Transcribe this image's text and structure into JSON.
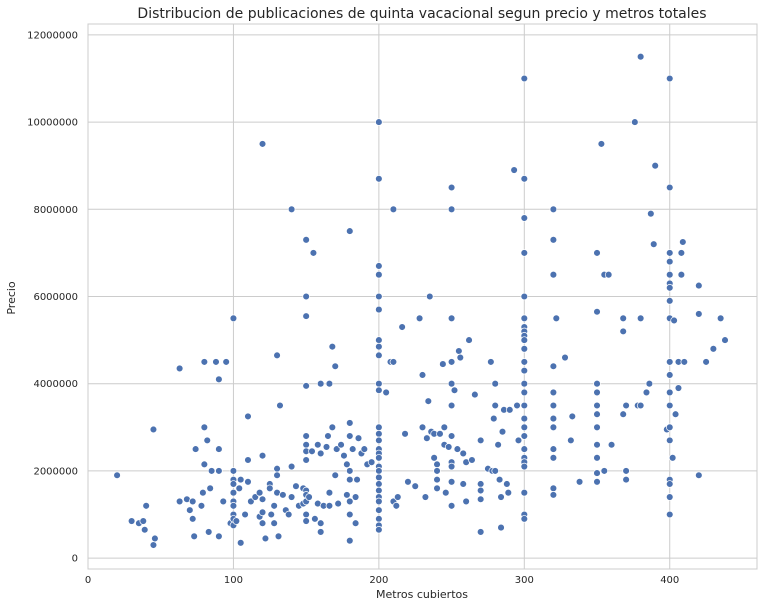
{
  "chart_data": {
    "type": "scatter",
    "title": "Distribucion de publicaciones de quinta vacacional segun precio y metros totales",
    "xlabel": "Metros cubiertos",
    "ylabel": "Precio",
    "xlim": [
      0,
      460
    ],
    "ylim": [
      -250000,
      12250000
    ],
    "xticks": [
      0,
      100,
      200,
      300,
      400
    ],
    "yticks": [
      0,
      2000000,
      4000000,
      6000000,
      8000000,
      10000000,
      12000000
    ],
    "xtick_labels": [
      "0",
      "100",
      "200",
      "300",
      "400"
    ],
    "ytick_labels": [
      "0",
      "2000000",
      "4000000",
      "6000000",
      "8000000",
      "10000000",
      "12000000"
    ],
    "grid": true,
    "point_color": "#4c72b0",
    "points": [
      [
        20,
        1900000
      ],
      [
        30,
        850000
      ],
      [
        35,
        800000
      ],
      [
        38,
        850000
      ],
      [
        39,
        650000
      ],
      [
        40,
        1200000
      ],
      [
        45,
        300000
      ],
      [
        46,
        450000
      ],
      [
        45,
        2950000
      ],
      [
        63,
        4350000
      ],
      [
        63,
        1300000
      ],
      [
        68,
        1350000
      ],
      [
        70,
        1100000
      ],
      [
        72,
        900000
      ],
      [
        72,
        1300000
      ],
      [
        73,
        500000
      ],
      [
        74,
        2500000
      ],
      [
        78,
        1200000
      ],
      [
        79,
        1500000
      ],
      [
        80,
        2150000
      ],
      [
        80,
        4500000
      ],
      [
        80,
        3000000
      ],
      [
        82,
        2700000
      ],
      [
        83,
        600000
      ],
      [
        84,
        1600000
      ],
      [
        85,
        2000000
      ],
      [
        88,
        4500000
      ],
      [
        90,
        4100000
      ],
      [
        90,
        2500000
      ],
      [
        90,
        500000
      ],
      [
        90,
        2000000
      ],
      [
        93,
        1300000
      ],
      [
        95,
        4500000
      ],
      [
        98,
        800000
      ],
      [
        100,
        5500000
      ],
      [
        100,
        2000000
      ],
      [
        100,
        1800000
      ],
      [
        100,
        1700000
      ],
      [
        100,
        1500000
      ],
      [
        100,
        1300000
      ],
      [
        100,
        1200000
      ],
      [
        100,
        1000000
      ],
      [
        100,
        900000
      ],
      [
        100,
        750000
      ],
      [
        102,
        850000
      ],
      [
        104,
        1600000
      ],
      [
        105,
        350000
      ],
      [
        105,
        1800000
      ],
      [
        108,
        1000000
      ],
      [
        110,
        3250000
      ],
      [
        110,
        2250000
      ],
      [
        110,
        1750000
      ],
      [
        112,
        1300000
      ],
      [
        115,
        1400000
      ],
      [
        118,
        1500000
      ],
      [
        118,
        950000
      ],
      [
        120,
        9500000
      ],
      [
        120,
        2350000
      ],
      [
        120,
        1350000
      ],
      [
        120,
        800000
      ],
      [
        120,
        1050000
      ],
      [
        122,
        450000
      ],
      [
        125,
        1700000
      ],
      [
        125,
        1600000
      ],
      [
        126,
        1000000
      ],
      [
        128,
        800000
      ],
      [
        128,
        1200000
      ],
      [
        130,
        4650000
      ],
      [
        130,
        2050000
      ],
      [
        130,
        1900000
      ],
      [
        130,
        1500000
      ],
      [
        131,
        500000
      ],
      [
        132,
        3500000
      ],
      [
        134,
        1450000
      ],
      [
        136,
        1100000
      ],
      [
        138,
        1000000
      ],
      [
        140,
        8000000
      ],
      [
        140,
        2100000
      ],
      [
        140,
        1400000
      ],
      [
        143,
        1650000
      ],
      [
        145,
        1200000
      ],
      [
        148,
        1250000
      ],
      [
        148,
        1600000
      ],
      [
        150,
        7300000
      ],
      [
        150,
        6000000
      ],
      [
        150,
        5550000
      ],
      [
        150,
        3950000
      ],
      [
        150,
        2800000
      ],
      [
        150,
        2600000
      ],
      [
        150,
        2450000
      ],
      [
        150,
        2250000
      ],
      [
        150,
        1550000
      ],
      [
        150,
        1450000
      ],
      [
        150,
        1300000
      ],
      [
        150,
        1000000
      ],
      [
        150,
        850000
      ],
      [
        152,
        1400000
      ],
      [
        154,
        2450000
      ],
      [
        155,
        7000000
      ],
      [
        156,
        900000
      ],
      [
        158,
        1250000
      ],
      [
        158,
        2600000
      ],
      [
        160,
        2400000
      ],
      [
        160,
        4000000
      ],
      [
        160,
        800000
      ],
      [
        160,
        600000
      ],
      [
        162,
        1200000
      ],
      [
        164,
        2550000
      ],
      [
        165,
        2800000
      ],
      [
        166,
        4000000
      ],
      [
        166,
        1500000
      ],
      [
        166,
        1200000
      ],
      [
        168,
        4850000
      ],
      [
        168,
        3000000
      ],
      [
        170,
        4400000
      ],
      [
        170,
        1900000
      ],
      [
        171,
        2500000
      ],
      [
        172,
        1250000
      ],
      [
        174,
        2600000
      ],
      [
        176,
        2350000
      ],
      [
        178,
        1450000
      ],
      [
        178,
        2150000
      ],
      [
        180,
        7500000
      ],
      [
        180,
        3100000
      ],
      [
        180,
        2800000
      ],
      [
        180,
        2000000
      ],
      [
        180,
        1800000
      ],
      [
        180,
        1300000
      ],
      [
        180,
        1000000
      ],
      [
        180,
        400000
      ],
      [
        182,
        2500000
      ],
      [
        184,
        1400000
      ],
      [
        184,
        800000
      ],
      [
        185,
        1800000
      ],
      [
        186,
        2750000
      ],
      [
        188,
        2400000
      ],
      [
        190,
        2500000
      ],
      [
        192,
        2150000
      ],
      [
        195,
        2200000
      ],
      [
        200,
        10000000
      ],
      [
        200,
        8700000
      ],
      [
        200,
        6700000
      ],
      [
        200,
        6500000
      ],
      [
        200,
        6000000
      ],
      [
        200,
        5700000
      ],
      [
        200,
        5000000
      ],
      [
        200,
        4850000
      ],
      [
        200,
        4650000
      ],
      [
        200,
        4000000
      ],
      [
        200,
        3850000
      ],
      [
        200,
        3000000
      ],
      [
        200,
        2850000
      ],
      [
        200,
        2700000
      ],
      [
        200,
        2500000
      ],
      [
        200,
        2400000
      ],
      [
        200,
        2300000
      ],
      [
        200,
        2100000
      ],
      [
        200,
        2000000
      ],
      [
        200,
        1850000
      ],
      [
        200,
        1700000
      ],
      [
        200,
        1550000
      ],
      [
        200,
        1400000
      ],
      [
        200,
        1300000
      ],
      [
        200,
        1100000
      ],
      [
        200,
        900000
      ],
      [
        200,
        750000
      ],
      [
        200,
        650000
      ],
      [
        205,
        3800000
      ],
      [
        208,
        4500000
      ],
      [
        210,
        8000000
      ],
      [
        210,
        4500000
      ],
      [
        210,
        1300000
      ],
      [
        212,
        1200000
      ],
      [
        213,
        1400000
      ],
      [
        216,
        5300000
      ],
      [
        218,
        2850000
      ],
      [
        220,
        1750000
      ],
      [
        225,
        1650000
      ],
      [
        228,
        5500000
      ],
      [
        230,
        4200000
      ],
      [
        230,
        3000000
      ],
      [
        232,
        1400000
      ],
      [
        233,
        2750000
      ],
      [
        234,
        3600000
      ],
      [
        235,
        6000000
      ],
      [
        236,
        2900000
      ],
      [
        238,
        2850000
      ],
      [
        238,
        2300000
      ],
      [
        240,
        1800000
      ],
      [
        240,
        1600000
      ],
      [
        240,
        2150000
      ],
      [
        240,
        2000000
      ],
      [
        242,
        2850000
      ],
      [
        244,
        4450000
      ],
      [
        245,
        2600000
      ],
      [
        245,
        3000000
      ],
      [
        246,
        1500000
      ],
      [
        248,
        2550000
      ],
      [
        250,
        8500000
      ],
      [
        250,
        8000000
      ],
      [
        250,
        5500000
      ],
      [
        250,
        4500000
      ],
      [
        250,
        4000000
      ],
      [
        250,
        3500000
      ],
      [
        250,
        2800000
      ],
      [
        250,
        2200000
      ],
      [
        250,
        2100000
      ],
      [
        250,
        1750000
      ],
      [
        250,
        1200000
      ],
      [
        252,
        3850000
      ],
      [
        254,
        2500000
      ],
      [
        255,
        4750000
      ],
      [
        256,
        4600000
      ],
      [
        258,
        1700000
      ],
      [
        258,
        2400000
      ],
      [
        260,
        2200000
      ],
      [
        260,
        1300000
      ],
      [
        262,
        5000000
      ],
      [
        264,
        2250000
      ],
      [
        266,
        3750000
      ],
      [
        270,
        2700000
      ],
      [
        270,
        1700000
      ],
      [
        270,
        1550000
      ],
      [
        270,
        1350000
      ],
      [
        270,
        600000
      ],
      [
        275,
        2050000
      ],
      [
        277,
        4500000
      ],
      [
        278,
        2000000
      ],
      [
        279,
        3200000
      ],
      [
        280,
        4000000
      ],
      [
        280,
        3500000
      ],
      [
        280,
        2000000
      ],
      [
        282,
        2600000
      ],
      [
        283,
        1800000
      ],
      [
        284,
        1400000
      ],
      [
        284,
        700000
      ],
      [
        285,
        2900000
      ],
      [
        286,
        3400000
      ],
      [
        288,
        1700000
      ],
      [
        289,
        1500000
      ],
      [
        290,
        3400000
      ],
      [
        293,
        8900000
      ],
      [
        295,
        3500000
      ],
      [
        296,
        2700000
      ],
      [
        300,
        11000000
      ],
      [
        300,
        8700000
      ],
      [
        300,
        7800000
      ],
      [
        300,
        7000000
      ],
      [
        300,
        6000000
      ],
      [
        300,
        5500000
      ],
      [
        300,
        5300000
      ],
      [
        300,
        5200000
      ],
      [
        300,
        5100000
      ],
      [
        300,
        5000000
      ],
      [
        300,
        4800000
      ],
      [
        300,
        4500000
      ],
      [
        300,
        4300000
      ],
      [
        300,
        4000000
      ],
      [
        300,
        3800000
      ],
      [
        300,
        3500000
      ],
      [
        300,
        3200000
      ],
      [
        300,
        3000000
      ],
      [
        300,
        2800000
      ],
      [
        300,
        2500000
      ],
      [
        300,
        2300000
      ],
      [
        300,
        2200000
      ],
      [
        300,
        2100000
      ],
      [
        300,
        1500000
      ],
      [
        300,
        1000000
      ],
      [
        300,
        900000
      ],
      [
        320,
        8000000
      ],
      [
        320,
        7300000
      ],
      [
        320,
        6500000
      ],
      [
        320,
        4400000
      ],
      [
        320,
        3800000
      ],
      [
        320,
        3500000
      ],
      [
        320,
        3200000
      ],
      [
        320,
        3000000
      ],
      [
        320,
        2500000
      ],
      [
        320,
        2300000
      ],
      [
        320,
        1600000
      ],
      [
        320,
        1450000
      ],
      [
        322,
        5500000
      ],
      [
        328,
        4600000
      ],
      [
        332,
        2700000
      ],
      [
        333,
        3250000
      ],
      [
        338,
        1750000
      ],
      [
        350,
        7000000
      ],
      [
        350,
        5650000
      ],
      [
        350,
        4000000
      ],
      [
        350,
        3800000
      ],
      [
        350,
        3500000
      ],
      [
        350,
        3300000
      ],
      [
        350,
        3000000
      ],
      [
        350,
        2600000
      ],
      [
        350,
        2300000
      ],
      [
        350,
        1950000
      ],
      [
        350,
        1750000
      ],
      [
        353,
        9500000
      ],
      [
        355,
        6500000
      ],
      [
        355,
        2000000
      ],
      [
        358,
        6500000
      ],
      [
        360,
        2600000
      ],
      [
        368,
        5500000
      ],
      [
        368,
        5200000
      ],
      [
        368,
        3300000
      ],
      [
        370,
        3500000
      ],
      [
        370,
        2000000
      ],
      [
        370,
        1800000
      ],
      [
        376,
        10000000
      ],
      [
        378,
        3500000
      ],
      [
        380,
        11500000
      ],
      [
        380,
        5500000
      ],
      [
        380,
        3500000
      ],
      [
        384,
        3800000
      ],
      [
        386,
        4000000
      ],
      [
        387,
        7900000
      ],
      [
        389,
        7200000
      ],
      [
        390,
        9000000
      ],
      [
        398,
        2950000
      ],
      [
        400,
        11000000
      ],
      [
        400,
        8500000
      ],
      [
        400,
        7000000
      ],
      [
        400,
        6800000
      ],
      [
        400,
        6500000
      ],
      [
        400,
        6300000
      ],
      [
        400,
        6200000
      ],
      [
        400,
        5900000
      ],
      [
        400,
        5500000
      ],
      [
        400,
        4500000
      ],
      [
        400,
        4200000
      ],
      [
        400,
        3800000
      ],
      [
        400,
        3500000
      ],
      [
        400,
        3000000
      ],
      [
        400,
        2700000
      ],
      [
        400,
        1800000
      ],
      [
        400,
        1700000
      ],
      [
        400,
        1400000
      ],
      [
        400,
        1000000
      ],
      [
        402,
        2300000
      ],
      [
        403,
        5450000
      ],
      [
        404,
        3300000
      ],
      [
        406,
        3900000
      ],
      [
        406,
        4500000
      ],
      [
        408,
        7000000
      ],
      [
        408,
        6500000
      ],
      [
        409,
        7250000
      ],
      [
        410,
        4500000
      ],
      [
        420,
        6250000
      ],
      [
        420,
        5600000
      ],
      [
        420,
        1900000
      ],
      [
        425,
        4500000
      ],
      [
        430,
        4800000
      ],
      [
        435,
        5500000
      ],
      [
        438,
        5000000
      ]
    ]
  }
}
